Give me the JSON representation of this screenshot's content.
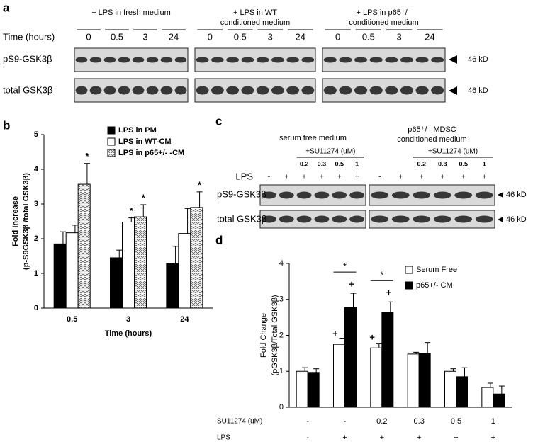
{
  "panel_labels": [
    "a",
    "b",
    "c",
    "d"
  ],
  "panel_a": {
    "conditions": [
      [
        "+ LPS in fresh medium"
      ],
      [
        "+ LPS in WT",
        "conditioned medium"
      ],
      [
        "+ LPS in p65⁺/⁻",
        "conditioned medium"
      ]
    ],
    "time_label": "Time (hours)",
    "times": [
      "0",
      "0.5",
      "3",
      "24"
    ],
    "rows": [
      "pS9-GSK3β",
      "total GSK3β"
    ],
    "marker": "46 kD"
  },
  "panel_c": {
    "conditions": [
      [
        "serum free medium"
      ],
      [
        "p65⁺/⁻ MDSC",
        "conditioned medium"
      ]
    ],
    "treatment": "+SU11274 (uM)",
    "doses": [
      "0.2",
      "0.3",
      "0.5",
      "1"
    ],
    "lps_label": "LPS",
    "lps": [
      "-",
      "+",
      "+",
      "+",
      "+",
      "+"
    ],
    "rows": [
      "pS9-GSK3β",
      "total GSK3β"
    ],
    "marker": "46 kD"
  },
  "chart_data": [
    {
      "type": "bar",
      "y_label": [
        "Fold Increase",
        "(p-S9GSK3β /total GSK3β)"
      ],
      "x_label": "Time (hours)",
      "categories": [
        "0.5",
        "3",
        "24"
      ],
      "ylim": [
        0,
        5
      ],
      "yticks": [
        0,
        1,
        2,
        3,
        4,
        5
      ],
      "series": [
        {
          "name": "LPS in PM",
          "color": "#000000",
          "values": [
            1.85,
            1.45,
            1.28
          ],
          "errors": [
            0.35,
            0.22,
            0.5
          ]
        },
        {
          "name": "LPS in WT-CM",
          "color": "#ffffff",
          "values": [
            2.17,
            2.48,
            2.15
          ],
          "errors": [
            0.22,
            0.12,
            0.72
          ],
          "annotations": [
            null,
            "*",
            null
          ]
        },
        {
          "name": "LPS in p65+/- -CM",
          "color": "#ffffff",
          "hatch": true,
          "values": [
            3.57,
            2.63,
            2.9
          ],
          "errors": [
            0.6,
            0.35,
            0.45
          ],
          "annotations": [
            "*",
            "*",
            "*"
          ]
        }
      ]
    },
    {
      "type": "bar",
      "y_label": [
        "Fold Change",
        "(pGSK3β/Total GSK3β)"
      ],
      "categories": [
        "-",
        "-",
        "0.2",
        "0.3",
        "0.5",
        "1"
      ],
      "category_row_label": "SU11274  (uM)",
      "lps_row_label": "LPS",
      "lps_row": [
        "-",
        "+",
        "+",
        "+",
        "+",
        "+"
      ],
      "ylim": [
        0,
        4
      ],
      "yticks": [
        0,
        1,
        2,
        3,
        4
      ],
      "series": [
        {
          "name": "Serum Free",
          "color": "#ffffff",
          "values": [
            1.0,
            1.75,
            1.65,
            1.48,
            1.0,
            0.55
          ],
          "errors": [
            0.1,
            0.17,
            0.13,
            0.05,
            0.07,
            0.12
          ],
          "annotations": [
            null,
            "+",
            "+",
            null,
            null,
            null
          ]
        },
        {
          "name": "p65+/- CM",
          "color": "#000000",
          "values": [
            0.97,
            2.77,
            2.65,
            1.5,
            0.85,
            0.37
          ],
          "errors": [
            0.1,
            0.4,
            0.28,
            0.3,
            0.25,
            0.22
          ],
          "annotations": [
            null,
            "+",
            "+",
            null,
            null,
            null
          ]
        }
      ],
      "brackets": [
        {
          "category": 1,
          "label": "*"
        },
        {
          "category": 2,
          "label": "*"
        }
      ]
    }
  ]
}
